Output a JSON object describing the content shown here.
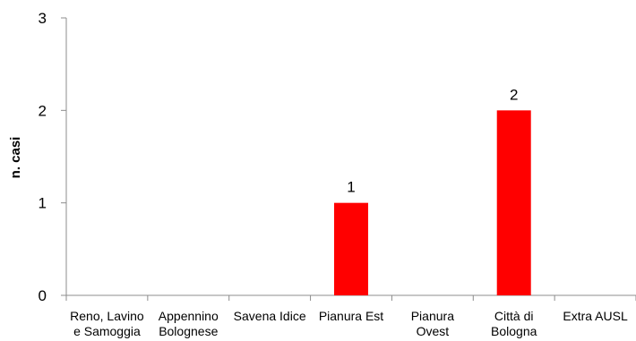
{
  "chart_data": {
    "type": "bar",
    "ylabel": "n. casi",
    "ylim": [
      0,
      3
    ],
    "yticks": [
      0,
      1,
      2,
      3
    ],
    "categories": [
      [
        "Reno, Lavino",
        "e Samoggia"
      ],
      [
        "Appennino",
        "Bolognese"
      ],
      [
        "Savena Idice"
      ],
      [
        "Pianura Est"
      ],
      [
        "Pianura",
        "Ovest"
      ],
      [
        "Città di",
        "Bologna"
      ],
      [
        "Extra AUSL"
      ]
    ],
    "values": [
      0,
      0,
      0,
      1,
      0,
      2,
      0
    ],
    "data_labels": [
      "",
      "",
      "",
      "1",
      "",
      "2",
      ""
    ],
    "bar_color": "#ff0000",
    "axis_color": "#8c8c8c",
    "grid": false,
    "legend": "none"
  }
}
